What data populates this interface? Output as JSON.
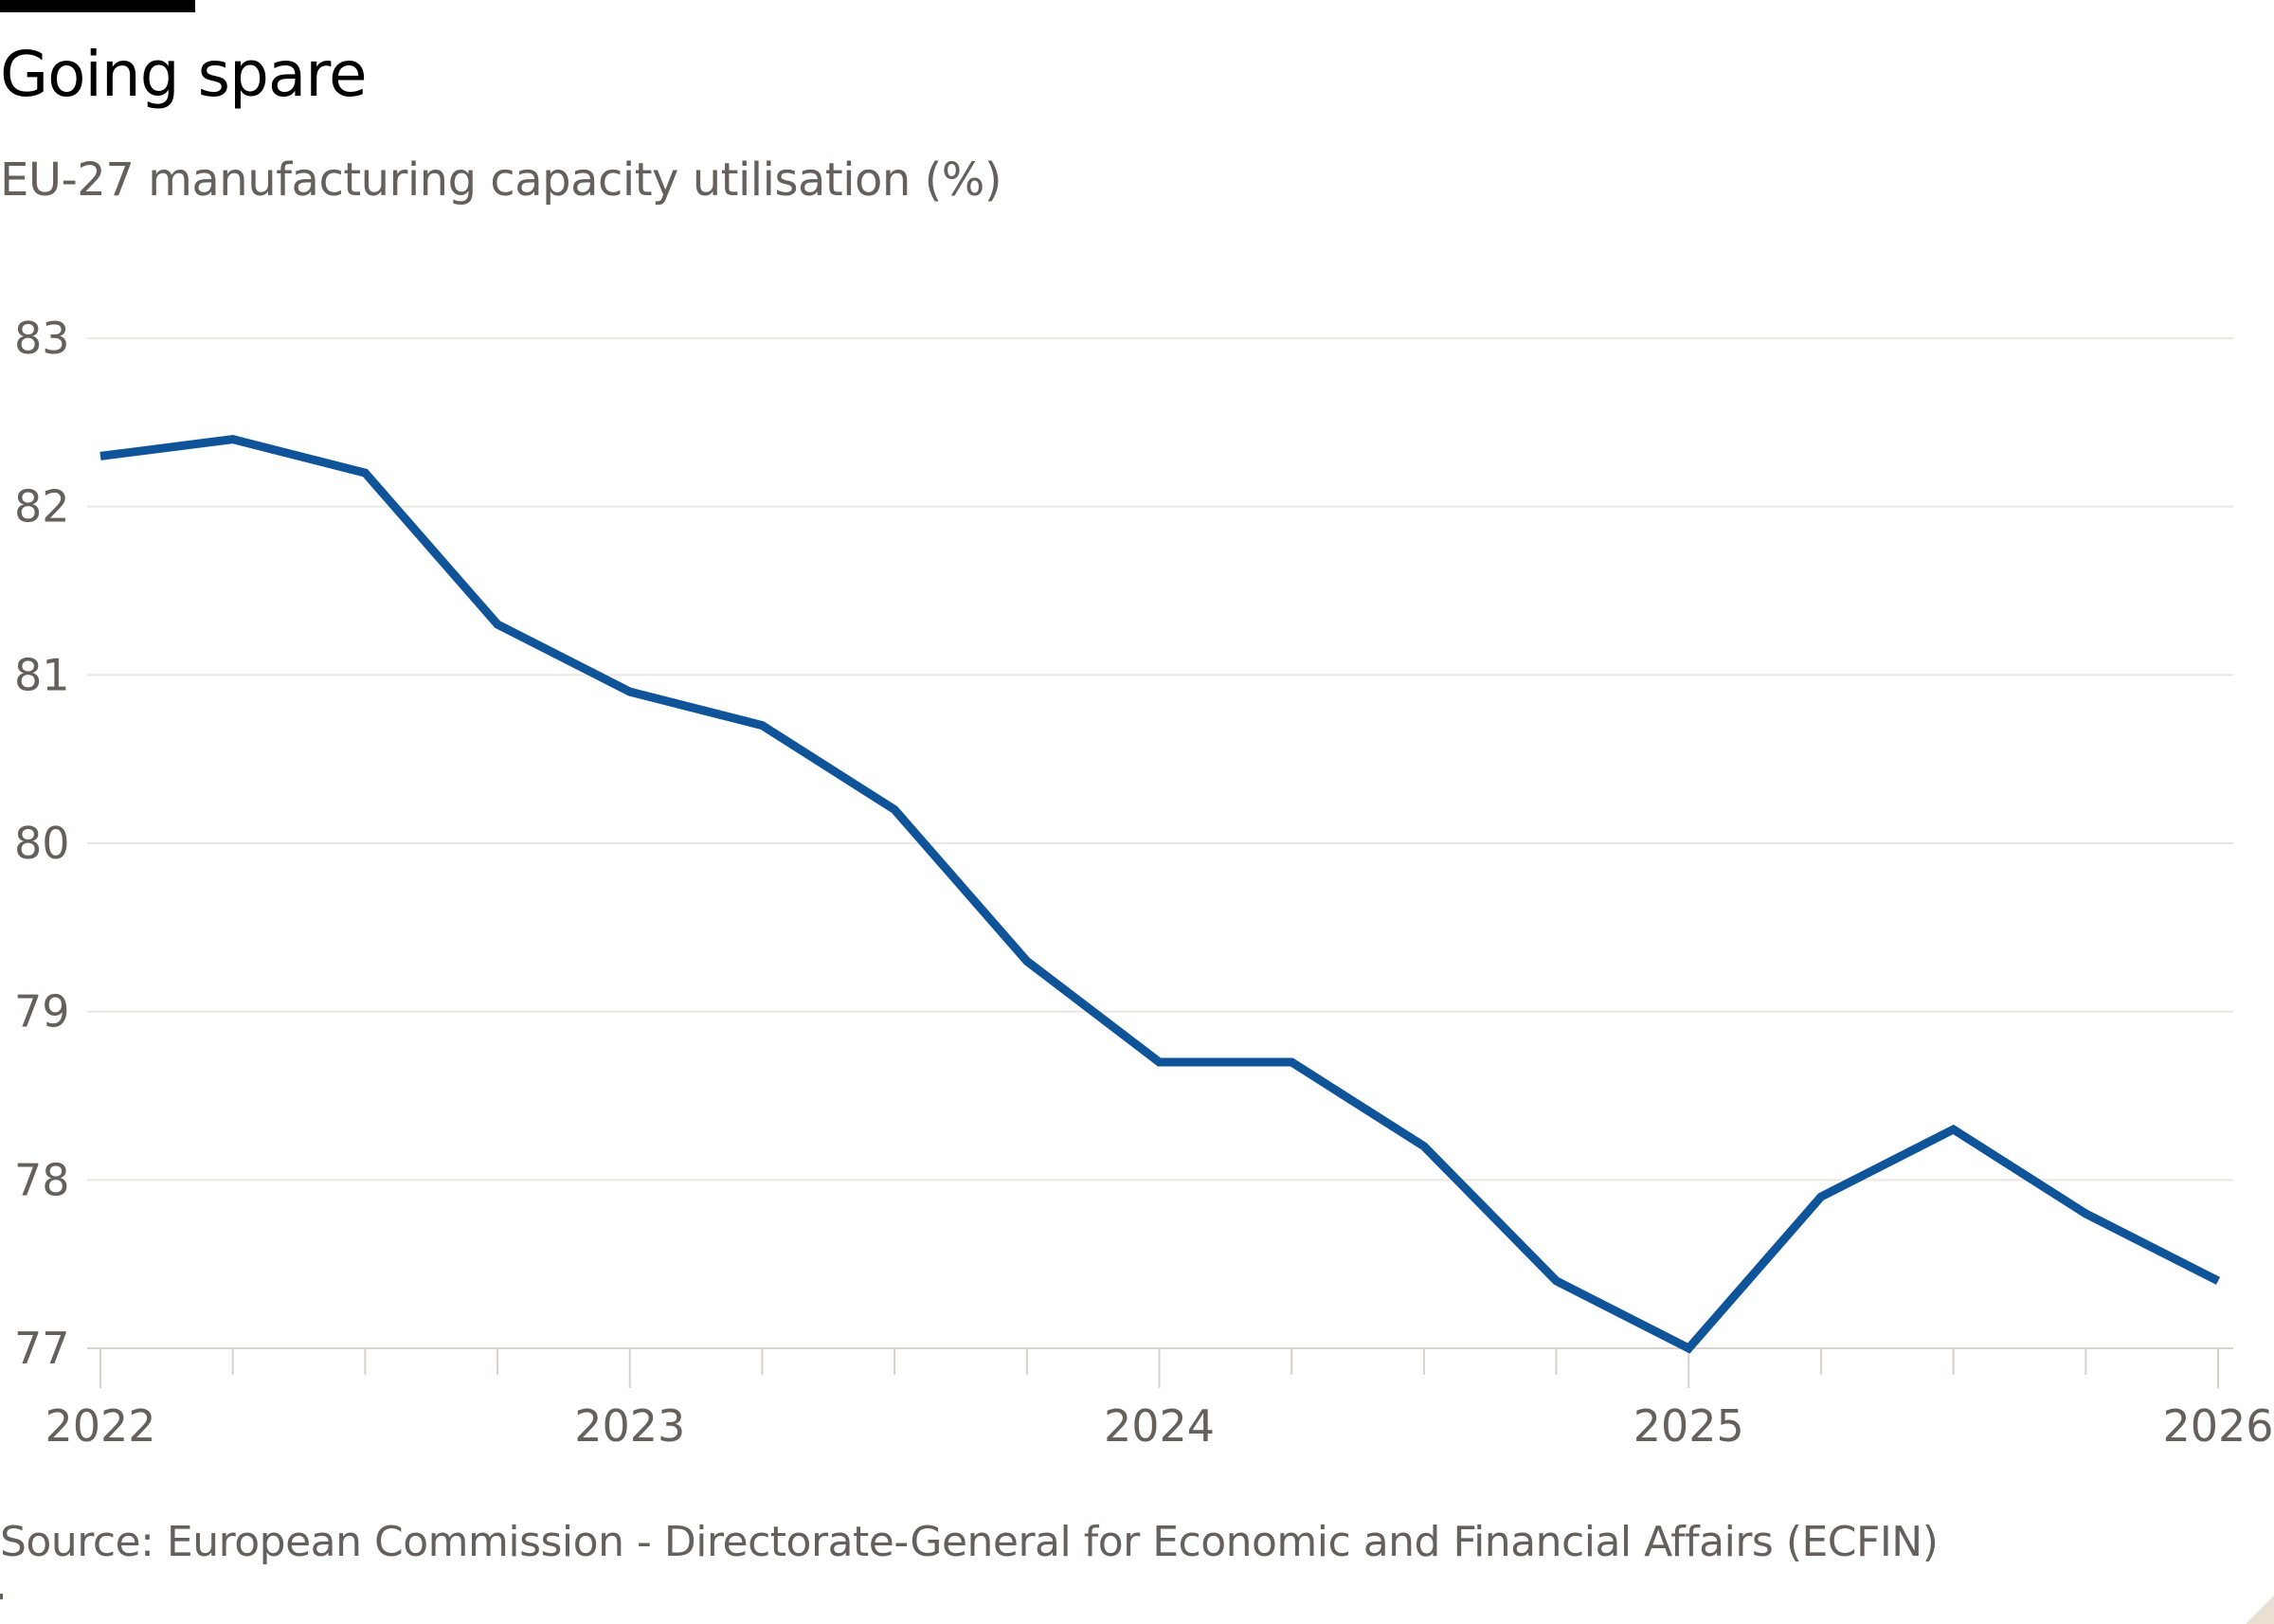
{
  "header": {
    "title": "Going spare",
    "subtitle": "EU-27 manufacturing capacity utilisation (%)"
  },
  "footer": {
    "source": "Source: European Commission - Directorate-General for Economic and Financial Affairs (ECFIN)"
  },
  "colors": {
    "line": "#0f5499",
    "grid": "#ebe6e0",
    "text": "#66605c",
    "title": "#000000",
    "accent_bar": "#000000",
    "corner": "#e9dfd3"
  },
  "chart_data": {
    "type": "line",
    "title": "Going spare",
    "subtitle": "EU-27 manufacturing capacity utilisation (%)",
    "xlabel": "",
    "ylabel": "",
    "x": [
      2022.0,
      2022.25,
      2022.5,
      2022.75,
      2023.0,
      2023.25,
      2023.5,
      2023.75,
      2024.0,
      2024.25,
      2024.5,
      2024.75,
      2025.0,
      2025.25,
      2025.5,
      2025.75,
      2026.0
    ],
    "series": [
      {
        "name": "EU-27 manufacturing capacity utilisation",
        "values": [
          82.3,
          82.4,
          82.2,
          81.3,
          80.9,
          80.7,
          80.2,
          79.3,
          78.7,
          78.7,
          78.2,
          77.4,
          77.0,
          77.9,
          78.3,
          77.8,
          77.4
        ]
      }
    ],
    "xlim": [
      2022,
      2026
    ],
    "ylim": [
      77,
      83
    ],
    "yticks": [
      77,
      78,
      79,
      80,
      81,
      82,
      83
    ],
    "ytick_labels": [
      "77",
      "78",
      "79",
      "80",
      "81",
      "82",
      "83"
    ],
    "xticks": [
      2022,
      2023,
      2024,
      2025,
      2026
    ],
    "xtick_labels": [
      "2022",
      "2023",
      "2024",
      "2025",
      "2026"
    ],
    "minor_xticks": [
      2022.25,
      2022.5,
      2022.75,
      2023.25,
      2023.5,
      2023.75,
      2024.25,
      2024.5,
      2024.75,
      2025.25,
      2025.5,
      2025.75
    ],
    "grid": true,
    "legend": "none",
    "source": "Source: European Commission - Directorate-General for Economic and Financial Affairs (ECFIN)"
  }
}
